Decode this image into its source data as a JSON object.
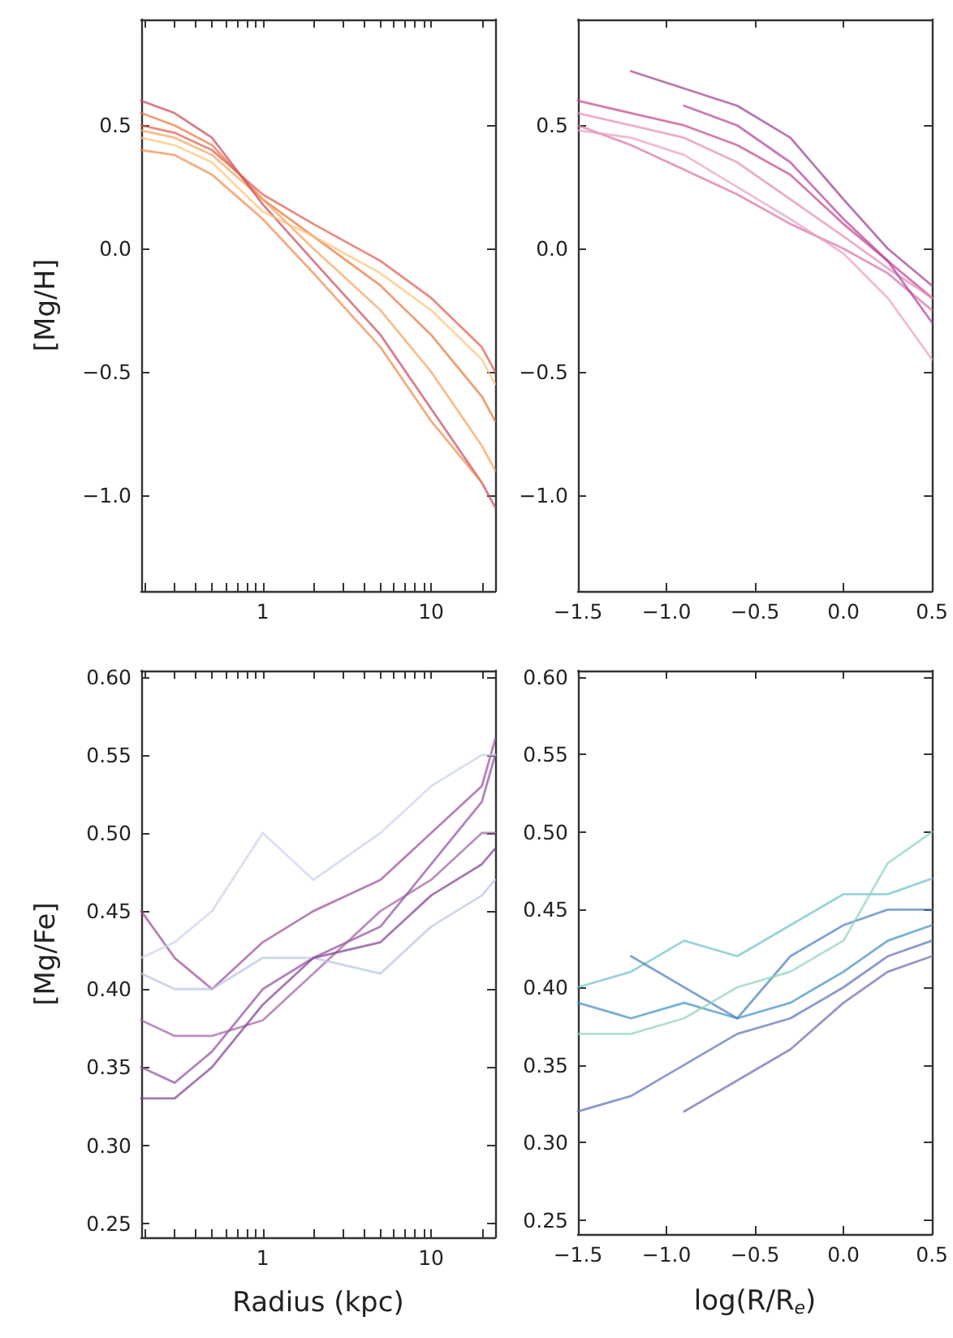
{
  "chart_data": [
    {
      "type": "line",
      "ylabel": "[Mg/H]",
      "log": "x",
      "marker": "none",
      "grid": false,
      "xlim": [
        0.19,
        24
      ],
      "ylim": [
        -1.39,
        0.93
      ],
      "xticks": [
        {
          "value": 0.2,
          "label": null
        },
        {
          "value": 0.3,
          "label": null
        },
        {
          "value": 0.4,
          "label": null
        },
        {
          "value": 0.5,
          "label": null
        },
        {
          "value": 0.6,
          "label": null
        },
        {
          "value": 0.7,
          "label": null
        },
        {
          "value": 0.8,
          "label": null
        },
        {
          "value": 0.9,
          "label": null
        },
        1,
        {
          "value": 2,
          "label": null
        },
        {
          "value": 3,
          "label": null
        },
        {
          "value": 4,
          "label": null
        },
        {
          "value": 5,
          "label": null
        },
        {
          "value": 6,
          "label": null
        },
        {
          "value": 7,
          "label": null
        },
        {
          "value": 8,
          "label": null
        },
        {
          "value": 9,
          "label": null
        },
        10,
        {
          "value": 20,
          "label": null
        }
      ],
      "yticks": [
        {
          "value": -1,
          "label": "−1.0"
        },
        {
          "value": -0.5,
          "label": "−0.5"
        },
        {
          "value": 0,
          "label": "0.0"
        },
        {
          "value": 0.5,
          "label": "0.5"
        }
      ],
      "x": [
        0.19,
        0.3,
        0.5,
        1,
        2,
        5,
        10,
        20,
        24
      ],
      "series": [
        {
          "color": "#e8743b",
          "values": [
            0.55,
            0.5,
            0.42,
            0.2,
            0.05,
            -0.15,
            -0.35,
            -0.6,
            -0.7
          ]
        },
        {
          "color": "#f5a35c",
          "values": [
            0.48,
            0.45,
            0.38,
            0.2,
            0.0,
            -0.25,
            -0.5,
            -0.8,
            -0.9
          ]
        },
        {
          "color": "#c8485e",
          "values": [
            0.6,
            0.55,
            0.45,
            0.18,
            -0.05,
            -0.35,
            -0.65,
            -0.95,
            -1.05
          ]
        },
        {
          "color": "#fbc47a",
          "values": [
            0.45,
            0.42,
            0.35,
            0.15,
            0.05,
            -0.1,
            -0.25,
            -0.45,
            -0.55
          ]
        },
        {
          "color": "#e05a4a",
          "values": [
            0.5,
            0.47,
            0.4,
            0.22,
            0.1,
            -0.05,
            -0.2,
            -0.4,
            -0.5
          ]
        },
        {
          "color": "#f08a4b",
          "values": [
            0.4,
            0.38,
            0.3,
            0.12,
            -0.1,
            -0.4,
            -0.7,
            -0.95,
            null
          ]
        }
      ]
    },
    {
      "type": "line",
      "marker": "none",
      "grid": false,
      "xlim": [
        -1.5,
        0.5
      ],
      "ylim": [
        -1.39,
        0.93
      ],
      "xticks": [
        {
          "value": -1.5,
          "label": "−1.5"
        },
        {
          "value": -1,
          "label": "−1.0"
        },
        {
          "value": -0.5,
          "label": "−0.5"
        },
        {
          "value": 0,
          "label": "0.0"
        },
        0.5
      ],
      "yticks": [
        {
          "value": -1,
          "label": "−1.0"
        },
        {
          "value": -0.5,
          "label": "−0.5"
        },
        {
          "value": 0,
          "label": "0.0"
        },
        {
          "value": 0.5,
          "label": "0.5"
        }
      ],
      "x": [
        -1.5,
        -1.2,
        -0.9,
        -0.6,
        -0.3,
        0,
        0.25,
        0.5
      ],
      "series": [
        {
          "color": "#c0458a",
          "values": [
            0.6,
            0.55,
            0.5,
            0.42,
            0.3,
            0.1,
            -0.05,
            -0.2
          ]
        },
        {
          "color": "#d86fa6",
          "values": [
            0.5,
            0.42,
            0.32,
            0.22,
            0.1,
            0.0,
            -0.1,
            -0.25
          ]
        },
        {
          "color": "#9a3d8f",
          "values": [
            null,
            0.72,
            0.65,
            0.58,
            0.45,
            0.2,
            0.0,
            -0.15
          ]
        },
        {
          "color": "#e38bb5",
          "values": [
            0.55,
            0.5,
            0.45,
            0.35,
            0.2,
            0.05,
            -0.08,
            -0.2
          ]
        },
        {
          "color": "#b3409a",
          "values": [
            null,
            null,
            0.58,
            0.5,
            0.35,
            0.12,
            -0.05,
            -0.3
          ]
        },
        {
          "color": "#e9a0c0",
          "values": [
            0.48,
            0.45,
            0.38,
            0.25,
            0.12,
            -0.02,
            -0.2,
            -0.45
          ]
        }
      ]
    },
    {
      "type": "line",
      "xlabel": "Radius (kpc)",
      "ylabel": "[Mg/Fe]",
      "log": "x",
      "marker": "none",
      "grid": false,
      "xlim": [
        0.19,
        24
      ],
      "ylim": [
        0.241,
        0.604
      ],
      "xticks": [
        {
          "value": 0.2,
          "label": null
        },
        {
          "value": 0.3,
          "label": null
        },
        {
          "value": 0.4,
          "label": null
        },
        {
          "value": 0.5,
          "label": null
        },
        {
          "value": 0.6,
          "label": null
        },
        {
          "value": 0.7,
          "label": null
        },
        {
          "value": 0.8,
          "label": null
        },
        {
          "value": 0.9,
          "label": null
        },
        1,
        {
          "value": 2,
          "label": null
        },
        {
          "value": 3,
          "label": null
        },
        {
          "value": 4,
          "label": null
        },
        {
          "value": 5,
          "label": null
        },
        {
          "value": 6,
          "label": null
        },
        {
          "value": 7,
          "label": null
        },
        {
          "value": 8,
          "label": null
        },
        {
          "value": 9,
          "label": null
        },
        10,
        {
          "value": 20,
          "label": null
        }
      ],
      "yticks": [
        0.25,
        {
          "value": 0.3,
          "label": "0.30"
        },
        0.35,
        {
          "value": 0.4,
          "label": "0.40"
        },
        0.45,
        {
          "value": 0.5,
          "label": "0.50"
        },
        0.55,
        {
          "value": 0.6,
          "label": "0.60"
        }
      ],
      "x": [
        0.19,
        0.3,
        0.5,
        1,
        2,
        5,
        10,
        20,
        24
      ],
      "series": [
        {
          "color": "#8e4f9e",
          "values": [
            0.35,
            0.34,
            0.36,
            0.4,
            0.42,
            0.44,
            0.48,
            0.52,
            0.55
          ]
        },
        {
          "color": "#a0619f",
          "values": [
            0.38,
            0.37,
            0.37,
            0.38,
            0.41,
            0.45,
            0.47,
            0.5,
            0.5
          ]
        },
        {
          "color": "#9b4a9a",
          "values": [
            0.45,
            0.42,
            0.4,
            0.43,
            0.45,
            0.47,
            0.5,
            0.53,
            0.56
          ]
        },
        {
          "color": "#b7c4e0",
          "values": [
            0.41,
            0.4,
            0.4,
            0.42,
            0.42,
            0.41,
            0.44,
            0.46,
            0.47
          ]
        },
        {
          "color": "#c9d3ea",
          "values": [
            0.42,
            0.43,
            0.45,
            0.5,
            0.47,
            0.5,
            0.53,
            0.55,
            0.55
          ]
        },
        {
          "color": "#7e3f92",
          "values": [
            0.33,
            0.33,
            0.35,
            0.39,
            0.42,
            0.43,
            0.46,
            0.48,
            0.49
          ]
        }
      ]
    },
    {
      "type": "line",
      "xlabel": "log(R/R$_{e}$)",
      "marker": "none",
      "grid": false,
      "xlim": [
        -1.5,
        0.5
      ],
      "ylim": [
        0.241,
        0.604
      ],
      "xticks": [
        {
          "value": -1.5,
          "label": "−1.5"
        },
        {
          "value": -1,
          "label": "−1.0"
        },
        {
          "value": -0.5,
          "label": "−0.5"
        },
        {
          "value": 0,
          "label": "0.0"
        },
        0.5
      ],
      "yticks": [
        0.25,
        {
          "value": 0.3,
          "label": "0.30"
        },
        0.35,
        {
          "value": 0.4,
          "label": "0.40"
        },
        0.45,
        {
          "value": 0.5,
          "label": "0.50"
        },
        0.55,
        {
          "value": 0.6,
          "label": "0.60"
        }
      ],
      "x": [
        -1.5,
        -1.2,
        -0.9,
        -0.6,
        -0.3,
        0,
        0.25,
        0.5
      ],
      "series": [
        {
          "color": "#5a6fb5",
          "values": [
            0.32,
            0.33,
            0.35,
            0.37,
            0.38,
            0.4,
            0.42,
            0.43
          ]
        },
        {
          "color": "#3d8fc2",
          "values": [
            0.39,
            0.38,
            0.39,
            0.38,
            0.39,
            0.41,
            0.43,
            0.44
          ]
        },
        {
          "color": "#6cc2c9",
          "values": [
            0.4,
            0.41,
            0.43,
            0.42,
            0.44,
            0.46,
            0.46,
            0.47
          ]
        },
        {
          "color": "#4a7fbf",
          "values": [
            null,
            0.42,
            0.4,
            0.38,
            0.42,
            0.44,
            0.45,
            0.45
          ]
        },
        {
          "color": "#6a6aae",
          "values": [
            null,
            null,
            0.32,
            0.34,
            0.36,
            0.39,
            0.41,
            0.42
          ]
        },
        {
          "color": "#8fd3b8",
          "values": [
            0.37,
            0.37,
            0.38,
            0.4,
            0.41,
            0.43,
            0.48,
            0.5
          ]
        }
      ]
    }
  ]
}
